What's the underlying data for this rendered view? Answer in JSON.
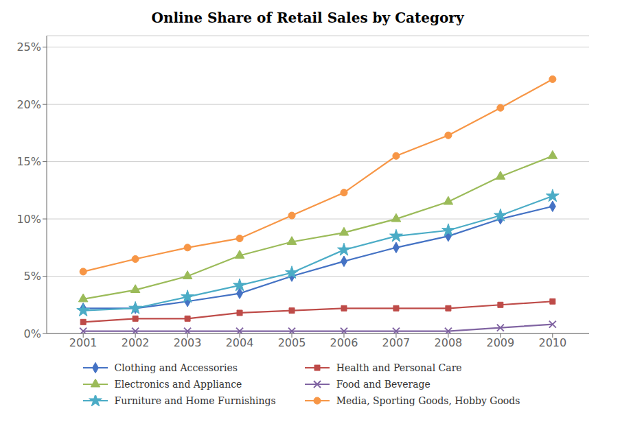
{
  "chart_data": {
    "type": "line",
    "title": "Online Share of Retail Sales by Category",
    "x": [
      2001,
      2002,
      2003,
      2004,
      2005,
      2006,
      2007,
      2008,
      2009,
      2010
    ],
    "xlim": [
      2000.3,
      2010.7
    ],
    "xticks": [
      2001,
      2002,
      2003,
      2004,
      2005,
      2006,
      2007,
      2008,
      2009,
      2010
    ],
    "ylim": [
      0,
      0.26
    ],
    "yticks": [
      {
        "value": 0,
        "label": "0%"
      },
      {
        "value": 0.05,
        "label": "5%"
      },
      {
        "value": 0.1,
        "label": "10%"
      },
      {
        "value": 0.15,
        "label": "15%"
      },
      {
        "value": 0.2,
        "label": "20%"
      },
      {
        "value": 0.25,
        "label": "25%"
      }
    ],
    "grid": true,
    "legend": "bottom",
    "series": [
      {
        "name": "Clothing and Accessories",
        "color": "#4472C4",
        "marker": "diamond",
        "values": [
          0.022,
          0.022,
          0.028,
          0.035,
          0.05,
          0.063,
          0.075,
          0.085,
          0.1,
          0.111
        ]
      },
      {
        "name": "Health and Personal Care",
        "color": "#BE4B48",
        "marker": "square",
        "values": [
          0.01,
          0.013,
          0.013,
          0.018,
          0.02,
          0.022,
          0.022,
          0.022,
          0.025,
          0.028
        ]
      },
      {
        "name": "Electronics and Appliance",
        "color": "#9BBB59",
        "marker": "triangle",
        "values": [
          0.03,
          0.038,
          0.05,
          0.068,
          0.08,
          0.088,
          0.1,
          0.115,
          0.137,
          0.155
        ]
      },
      {
        "name": "Food and Beverage",
        "color": "#8064A2",
        "marker": "x",
        "values": [
          0.002,
          0.002,
          0.002,
          0.002,
          0.002,
          0.002,
          0.002,
          0.002,
          0.005,
          0.008
        ]
      },
      {
        "name": "Furniture and Home Furnishings",
        "color": "#4BACC6",
        "marker": "star",
        "values": [
          0.02,
          0.022,
          0.032,
          0.042,
          0.053,
          0.073,
          0.085,
          0.09,
          0.103,
          0.12
        ]
      },
      {
        "name": "Media, Sporting Goods, Hobby Goods",
        "color": "#F79646",
        "marker": "circle",
        "values": [
          0.054,
          0.065,
          0.075,
          0.083,
          0.103,
          0.123,
          0.155,
          0.173,
          0.197,
          0.222
        ]
      }
    ]
  }
}
